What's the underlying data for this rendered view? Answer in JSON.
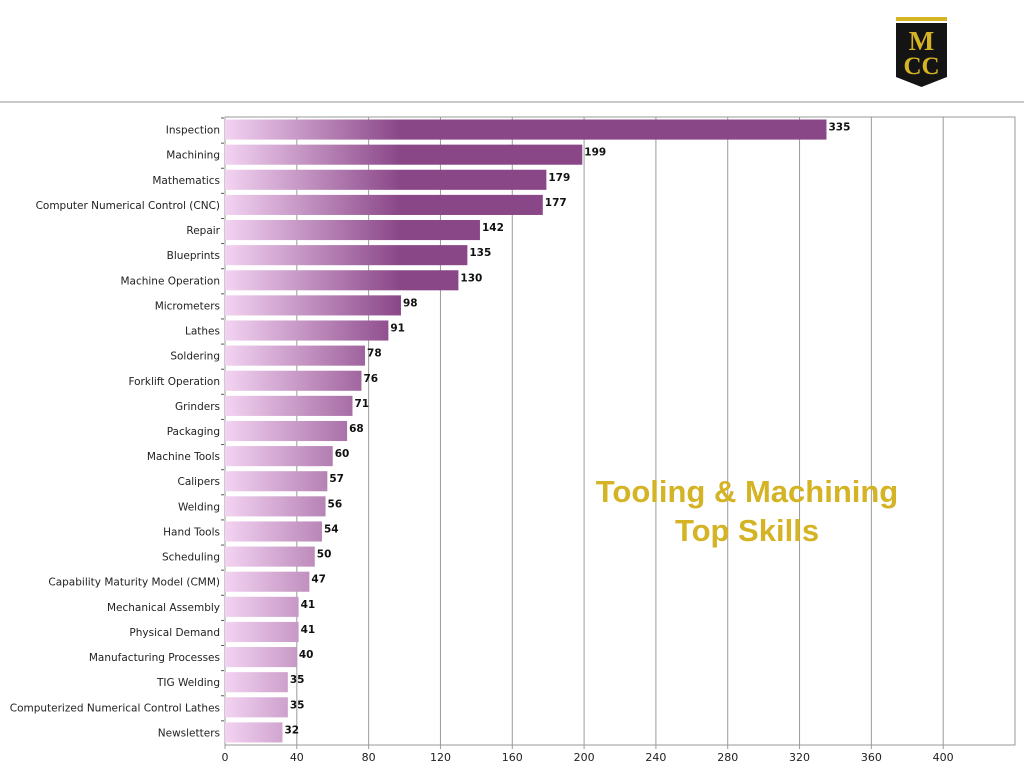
{
  "logo": {
    "line1": "M",
    "line2": "CC",
    "colors": {
      "body": "#111111",
      "band": "#d4b325",
      "letters": "#d4b325"
    }
  },
  "overlay_title": {
    "line1": "Tooling & Machining",
    "line2": "Top Skills",
    "color": "#d4b325"
  },
  "chart_data": {
    "type": "bar",
    "orientation": "horizontal",
    "categories": [
      "Inspection",
      "Machining",
      "Mathematics",
      "Computer Numerical Control (CNC)",
      "Repair",
      "Blueprints",
      "Machine Operation",
      "Micrometers",
      "Lathes",
      "Soldering",
      "Forklift Operation",
      "Grinders",
      "Packaging",
      "Machine Tools",
      "Calipers",
      "Welding",
      "Hand Tools",
      "Scheduling",
      "Capability Maturity Model (CMM)",
      "Mechanical Assembly",
      "Physical Demand",
      "Manufacturing Processes",
      "TIG Welding",
      "Computerized Numerical Control Lathes",
      "Newsletters"
    ],
    "values": [
      335,
      199,
      179,
      177,
      142,
      135,
      130,
      98,
      91,
      78,
      76,
      71,
      68,
      60,
      57,
      56,
      54,
      50,
      47,
      41,
      41,
      40,
      35,
      35,
      32
    ],
    "xlim": [
      0,
      440
    ],
    "xticks": [
      0,
      40,
      80,
      120,
      160,
      200,
      240,
      280,
      320,
      360,
      400
    ],
    "grid": true,
    "data_labels": true,
    "colors": {
      "bar_light": "#f3d3f2",
      "bar_dark": "#8a4788",
      "grid": "#9a9a9a",
      "axis": "#9a9a9a"
    }
  }
}
